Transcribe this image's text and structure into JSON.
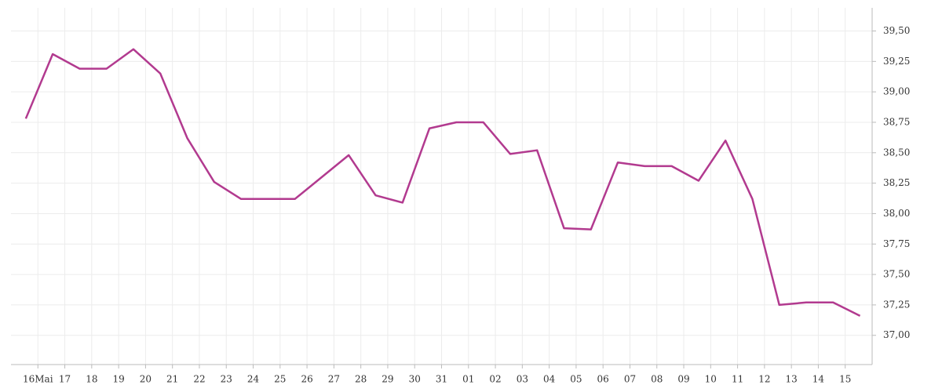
{
  "chart_data": {
    "type": "line",
    "x": [
      -0.45,
      0.55,
      1.55,
      2.55,
      3.55,
      4.55,
      5.55,
      6.55,
      7.55,
      8.55,
      9.55,
      10.55,
      11.55,
      12.55,
      13.55,
      14.55,
      15.55,
      16.55,
      17.55,
      18.55,
      19.55,
      20.55,
      21.55,
      22.55,
      23.55,
      24.55,
      25.55,
      26.55,
      27.55,
      28.55,
      29.55,
      30.55
    ],
    "series": [
      {
        "color": "#b23a8f",
        "values": [
          38.78,
          39.31,
          39.19,
          39.19,
          39.35,
          39.15,
          38.62,
          38.26,
          38.12,
          38.12,
          38.12,
          38.3,
          38.48,
          38.15,
          38.09,
          38.7,
          38.75,
          38.75,
          38.49,
          38.52,
          37.88,
          37.87,
          38.42,
          38.39,
          38.39,
          38.27,
          38.6,
          38.12,
          37.25,
          37.27,
          37.27,
          37.16
        ]
      }
    ],
    "xlim": [
      -1,
      31
    ],
    "xticks": [
      {
        "value": 0,
        "label": "16Mai"
      },
      {
        "value": 1,
        "label": "17"
      },
      {
        "value": 2,
        "label": "18"
      },
      {
        "value": 3,
        "label": "19"
      },
      {
        "value": 4,
        "label": "20"
      },
      {
        "value": 5,
        "label": "21"
      },
      {
        "value": 6,
        "label": "22"
      },
      {
        "value": 7,
        "label": "23"
      },
      {
        "value": 8,
        "label": "24"
      },
      {
        "value": 9,
        "label": "25"
      },
      {
        "value": 10,
        "label": "26"
      },
      {
        "value": 11,
        "label": "27"
      },
      {
        "value": 12,
        "label": "28"
      },
      {
        "value": 13,
        "label": "29"
      },
      {
        "value": 14,
        "label": "30"
      },
      {
        "value": 15,
        "label": "31"
      },
      {
        "value": 16,
        "label": "01"
      },
      {
        "value": 17,
        "label": "02"
      },
      {
        "value": 18,
        "label": "03"
      },
      {
        "value": 19,
        "label": "04"
      },
      {
        "value": 20,
        "label": "05"
      },
      {
        "value": 21,
        "label": "06"
      },
      {
        "value": 22,
        "label": "07"
      },
      {
        "value": 23,
        "label": "08"
      },
      {
        "value": 24,
        "label": "09"
      },
      {
        "value": 25,
        "label": "10"
      },
      {
        "value": 26,
        "label": "11"
      },
      {
        "value": 27,
        "label": "12"
      },
      {
        "value": 28,
        "label": "13"
      },
      {
        "value": 29,
        "label": "14"
      },
      {
        "value": 30,
        "label": "15"
      }
    ],
    "ylim": [
      36.76,
      39.69
    ],
    "yticks": [
      {
        "value": 37,
        "label": "37,00"
      },
      {
        "value": 37.25,
        "label": "37,25"
      },
      {
        "value": 37.5,
        "label": "37,50"
      },
      {
        "value": 37.75,
        "label": "37,75"
      },
      {
        "value": 38,
        "label": "38,00"
      },
      {
        "value": 38.25,
        "label": "38,25"
      },
      {
        "value": 38.5,
        "label": "38,50"
      },
      {
        "value": 38.75,
        "label": "38,75"
      },
      {
        "value": 39,
        "label": "39,00"
      },
      {
        "value": 39.25,
        "label": "39,25"
      },
      {
        "value": 39.5,
        "label": "39,50"
      }
    ],
    "grid": true
  }
}
